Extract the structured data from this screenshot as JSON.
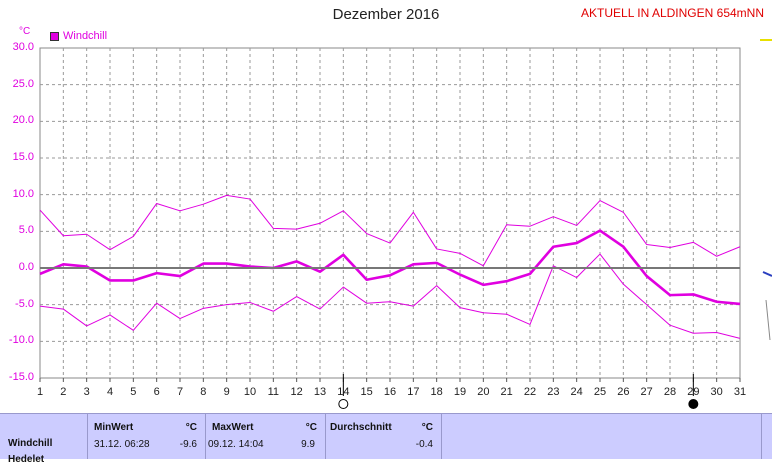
{
  "header": {
    "title": "Dezember 2016",
    "station": "AKTUELL IN ALDINGEN 654mNN",
    "unit": "°C"
  },
  "legend": {
    "label": "Windchill",
    "color": "#e000e0"
  },
  "stats": {
    "row_label": "Windchill",
    "next_row_label": "Hedelet",
    "min_header": "MinWert",
    "min_unit": "°C",
    "min_datetime": "31.12.  06:28",
    "min_value": "-9.6",
    "max_header": "MaxWert",
    "max_unit": "°C",
    "max_datetime": "09.12.  14:04",
    "max_value": "9.9",
    "avg_header": "Durchschnitt",
    "avg_unit": "°C",
    "avg_value": "-0.4"
  },
  "chart_data": {
    "type": "line",
    "title": "Dezember 2016",
    "ylabel": "°C",
    "ylim": [
      -15,
      30
    ],
    "yticks": [
      "30.0",
      "25.0",
      "20.0",
      "15.0",
      "10.0",
      "5.0",
      "0.0",
      "-5.0",
      "-10.0",
      "-15.0"
    ],
    "x": [
      1,
      2,
      3,
      4,
      5,
      6,
      7,
      8,
      9,
      10,
      11,
      12,
      13,
      14,
      15,
      16,
      17,
      18,
      19,
      20,
      21,
      22,
      23,
      24,
      25,
      26,
      27,
      28,
      29,
      30,
      31
    ],
    "grid": true,
    "legend_position": "top-left",
    "moon_phases": [
      {
        "day": 14,
        "phase": "full"
      },
      {
        "day": 29,
        "phase": "new"
      }
    ],
    "series": [
      {
        "name": "Windchill",
        "role": "max",
        "values": [
          7.9,
          4.4,
          4.6,
          2.5,
          4.3,
          8.8,
          7.8,
          8.7,
          9.9,
          9.4,
          5.4,
          5.3,
          6.1,
          7.8,
          4.7,
          3.4,
          7.6,
          2.6,
          2.0,
          0.3,
          5.9,
          5.7,
          7.0,
          5.8,
          9.2,
          7.6,
          3.2,
          2.8,
          3.5,
          1.6,
          2.9
        ]
      },
      {
        "role": "average",
        "values": [
          -0.8,
          0.5,
          0.2,
          -1.7,
          -1.7,
          -0.7,
          -1.1,
          0.6,
          0.6,
          0.2,
          0.0,
          0.9,
          -0.5,
          1.8,
          -1.6,
          -1.0,
          0.5,
          0.7,
          -0.9,
          -2.3,
          -1.8,
          -0.8,
          2.9,
          3.4,
          5.1,
          2.9,
          -1.1,
          -3.7,
          -3.6,
          -4.6,
          -4.9
        ]
      },
      {
        "role": "min",
        "values": [
          -5.2,
          -5.6,
          -7.9,
          -6.4,
          -8.5,
          -4.8,
          -6.9,
          -5.5,
          -5.0,
          -4.7,
          -5.9,
          -3.9,
          -5.6,
          -2.6,
          -4.8,
          -4.6,
          -5.2,
          -2.4,
          -5.4,
          -6.1,
          -6.3,
          -7.7,
          0.3,
          -1.3,
          1.9,
          -2.2,
          -5.0,
          -7.8,
          -8.9,
          -8.8,
          -9.6
        ]
      }
    ]
  }
}
